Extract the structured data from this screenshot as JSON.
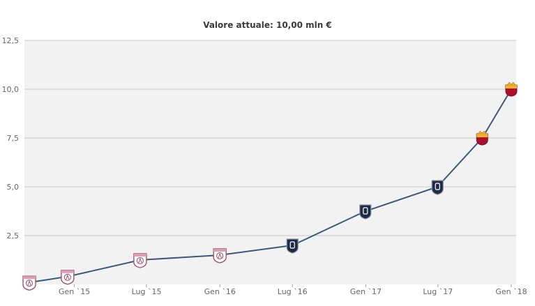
{
  "chart_data": {
    "type": "line",
    "title": "Valore attuale: 10,00 mln €",
    "xlabel": "",
    "ylabel": "",
    "ylim": [
      0,
      12.5
    ],
    "yticks": [
      {
        "value": 2.5,
        "label": "2,5"
      },
      {
        "value": 5.0,
        "label": "5,0"
      },
      {
        "value": 7.5,
        "label": "7,5"
      },
      {
        "value": 10.0,
        "label": "10,0"
      },
      {
        "value": 12.5,
        "label": "12,5"
      }
    ],
    "xticks": [
      {
        "date": "2015-01-01",
        "label": "Gen `15"
      },
      {
        "date": "2015-07-01",
        "label": "Lug `15"
      },
      {
        "date": "2016-01-01",
        "label": "Gen `16"
      },
      {
        "date": "2016-07-01",
        "label": "Lug `16"
      },
      {
        "date": "2017-01-01",
        "label": "Gen `17"
      },
      {
        "date": "2017-07-01",
        "label": "Lug `17"
      },
      {
        "date": "2018-01-01",
        "label": "Gen `18"
      }
    ],
    "xlim": [
      "2014-09-10",
      "2018-01-01"
    ],
    "grid": true,
    "line_color": "#3e5878",
    "series": [
      {
        "points": [
          {
            "x": "2014-09-10",
            "y": 0.1,
            "club": "club-a"
          },
          {
            "x": "2014-12-15",
            "y": 0.4,
            "club": "club-a"
          },
          {
            "x": "2015-06-15",
            "y": 1.25,
            "club": "club-a"
          },
          {
            "x": "2016-01-01",
            "y": 1.5,
            "club": "club-a"
          },
          {
            "x": "2016-07-01",
            "y": 2.0,
            "club": "club-b"
          },
          {
            "x": "2016-12-31",
            "y": 3.75,
            "club": "club-b"
          },
          {
            "x": "2017-06-30",
            "y": 5.0,
            "club": "club-b"
          },
          {
            "x": "2017-10-20",
            "y": 7.5,
            "club": "club-c"
          },
          {
            "x": "2018-01-01",
            "y": 10.0,
            "club": "club-c"
          }
        ]
      }
    ],
    "club_colors": {
      "club-a": {
        "fill": "#ffffff",
        "stroke": "#a0546c",
        "accent": "#d8a0b4"
      },
      "club-b": {
        "fill": "#1f2a44",
        "stroke": "#1a2238",
        "accent": "#ffffff"
      },
      "club-c": {
        "fill": "#a8102e",
        "stroke": "#7d0b22",
        "accent": "#f2b233"
      }
    }
  }
}
